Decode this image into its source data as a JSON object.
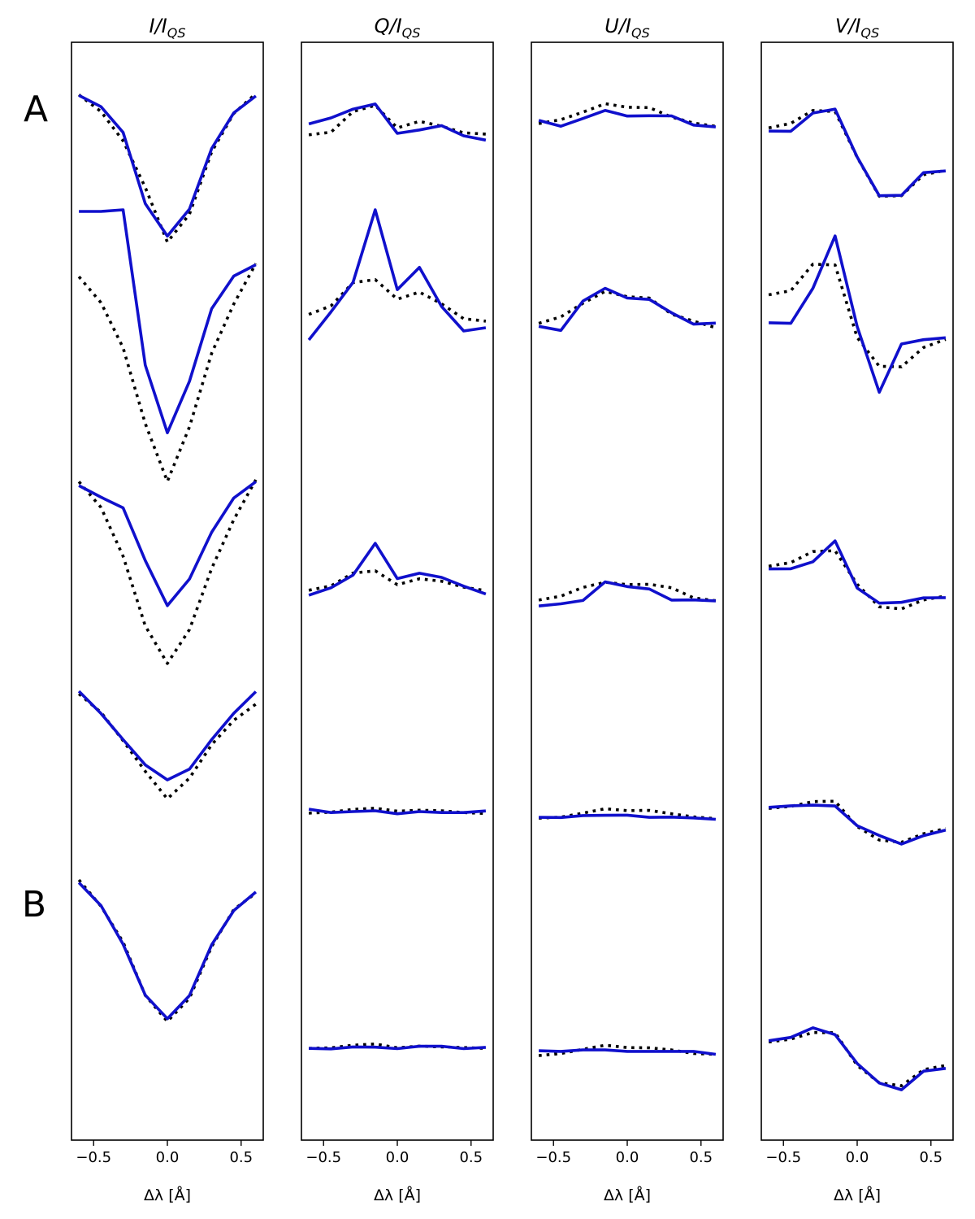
{
  "figure": {
    "row_labels": [
      "A",
      "B"
    ],
    "xlabel": "Δλ [Å]",
    "xticks": [
      -0.5,
      0.0,
      0.5
    ],
    "colors": {
      "fit": "#1010cc",
      "observed": "#000000"
    }
  },
  "chart_data": [
    {
      "type": "line",
      "title": "I/I_QS",
      "title_main": "I/I",
      "title_sub": "QS",
      "xlabel": "Δλ [Å]",
      "xlim": [
        -0.65,
        0.65
      ],
      "x": [
        -0.6,
        -0.45,
        -0.3,
        -0.15,
        0.0,
        0.15,
        0.3,
        0.45,
        0.6
      ],
      "profiles": [
        {
          "fit": [
            0.99,
            0.93,
            0.793,
            0.414,
            0.241,
            0.385,
            0.707,
            0.897,
            0.987
          ],
          "observed": [
            0.993,
            0.904,
            0.748,
            0.5,
            0.209,
            0.358,
            0.689,
            0.894,
            1.0
          ]
        },
        {
          "fit": [
            0.994,
            0.994,
            1.0,
            0.428,
            0.179,
            0.369,
            0.636,
            0.756,
            0.798
          ],
          "observed": [
            0.754,
            0.658,
            0.492,
            0.213,
            0.0,
            0.201,
            0.472,
            0.653,
            0.802
          ]
        },
        {
          "fit": [
            0.972,
            0.915,
            0.863,
            0.606,
            0.386,
            0.516,
            0.744,
            0.911,
            0.991
          ],
          "observed": [
            0.991,
            0.865,
            0.627,
            0.287,
            0.104,
            0.269,
            0.567,
            0.805,
            1.0
          ]
        },
        {
          "fit": [
            1.0,
            0.888,
            0.757,
            0.63,
            0.555,
            0.609,
            0.757,
            0.889,
            0.998
          ],
          "observed": [
            0.987,
            0.894,
            0.752,
            0.598,
            0.46,
            0.564,
            0.732,
            0.854,
            0.935
          ]
        },
        {
          "fit": [
            0.987,
            0.879,
            0.697,
            0.457,
            0.346,
            0.455,
            0.694,
            0.855,
            0.943
          ],
          "observed": [
            1.0,
            0.876,
            0.707,
            0.456,
            0.333,
            0.443,
            0.686,
            0.86,
            0.938
          ]
        }
      ]
    },
    {
      "type": "line",
      "title": "Q/I_QS",
      "title_main": "Q/I",
      "title_sub": "QS",
      "xlabel": "Δλ [Å]",
      "xlim": [
        -0.65,
        0.65
      ],
      "x": [
        -0.6,
        -0.45,
        -0.3,
        -0.15,
        0.0,
        0.15,
        0.3,
        0.45,
        0.6
      ],
      "profiles": [
        {
          "fit": [
            0.838,
            0.87,
            0.917,
            0.944,
            0.788,
            0.806,
            0.829,
            0.775,
            0.752
          ],
          "observed": [
            0.78,
            0.794,
            0.904,
            0.937,
            0.817,
            0.852,
            0.826,
            0.791,
            0.784
          ]
        },
        {
          "fit": [
            0.521,
            0.624,
            0.733,
            1.0,
            0.706,
            0.788,
            0.644,
            0.554,
            0.566
          ],
          "observed": [
            0.615,
            0.646,
            0.732,
            0.743,
            0.671,
            0.697,
            0.654,
            0.599,
            0.59
          ]
        },
        {
          "fit": [
            0.437,
            0.473,
            0.535,
            0.69,
            0.518,
            0.544,
            0.524,
            0.481,
            0.443
          ],
          "observed": [
            0.461,
            0.482,
            0.545,
            0.556,
            0.488,
            0.517,
            0.505,
            0.476,
            0.459
          ]
        },
        {
          "fit": [
            0.408,
            0.391,
            0.396,
            0.4,
            0.385,
            0.396,
            0.391,
            0.391,
            0.399
          ],
          "observed": [
            0.388,
            0.393,
            0.407,
            0.413,
            0.398,
            0.403,
            0.4,
            0.391,
            0.386
          ]
        },
        {
          "fit": [
            0.206,
            0.204,
            0.213,
            0.212,
            0.205,
            0.216,
            0.216,
            0.205,
            0.211
          ],
          "observed": [
            0.206,
            0.209,
            0.221,
            0.227,
            0.209,
            0.217,
            0.213,
            0.21,
            0.206
          ]
        }
      ]
    },
    {
      "type": "line",
      "title": "U/I_QS",
      "title_main": "U/I",
      "title_sub": "QS",
      "xlabel": "Δλ [Å]",
      "xlim": [
        -0.65,
        0.65
      ],
      "x": [
        -0.6,
        -0.45,
        -0.3,
        -0.15,
        0.0,
        0.15,
        0.3,
        0.45,
        0.6
      ],
      "profiles": [
        {
          "fit": [
            0.857,
            0.826,
            0.867,
            0.91,
            0.88,
            0.882,
            0.881,
            0.832,
            0.822
          ],
          "observed": [
            0.84,
            0.861,
            0.901,
            0.946,
            0.927,
            0.925,
            0.875,
            0.843,
            0.825
          ]
        },
        {
          "fit": [
            0.571,
            0.556,
            0.664,
            0.711,
            0.675,
            0.67,
            0.621,
            0.579,
            0.583
          ],
          "observed": [
            0.582,
            0.606,
            0.656,
            0.7,
            0.68,
            0.675,
            0.616,
            0.59,
            0.566
          ]
        },
        {
          "fit": [
            0.384,
            0.395,
            0.411,
            0.502,
            0.479,
            0.467,
            0.413,
            0.414,
            0.409
          ],
          "observed": [
            0.413,
            0.432,
            0.475,
            0.5,
            0.489,
            0.49,
            0.473,
            0.424,
            0.41
          ]
        },
        {
          "fit": [
            0.367,
            0.366,
            0.376,
            0.377,
            0.378,
            0.367,
            0.368,
            0.364,
            0.357
          ],
          "observed": [
            0.363,
            0.368,
            0.388,
            0.41,
            0.401,
            0.402,
            0.385,
            0.369,
            0.361
          ]
        },
        {
          "fit": [
            0.195,
            0.192,
            0.199,
            0.199,
            0.192,
            0.192,
            0.192,
            0.192,
            0.178
          ],
          "observed": [
            0.172,
            0.182,
            0.202,
            0.221,
            0.21,
            0.209,
            0.199,
            0.182,
            0.178
          ]
        }
      ]
    },
    {
      "type": "line",
      "title": "V/I_QS",
      "title_main": "V/I",
      "title_sub": "QS",
      "xlabel": "Δλ [Å]",
      "xlim": [
        -0.65,
        0.65
      ],
      "x": [
        -0.6,
        -0.45,
        -0.3,
        -0.15,
        0.0,
        0.15,
        0.3,
        0.45,
        0.6
      ],
      "profiles": [
        {
          "fit": [
            0.8,
            0.799,
            0.896,
            0.917,
            0.662,
            0.456,
            0.458,
            0.579,
            0.588
          ],
          "observed": [
            0.817,
            0.841,
            0.91,
            0.904,
            0.66,
            0.453,
            0.456,
            0.568,
            0.591
          ]
        },
        {
          "fit": [
            0.584,
            0.582,
            0.711,
            0.904,
            0.57,
            0.328,
            0.506,
            0.522,
            0.529
          ],
          "observed": [
            0.687,
            0.702,
            0.8,
            0.797,
            0.53,
            0.424,
            0.422,
            0.493,
            0.523
          ]
        },
        {
          "fit": [
            0.565,
            0.566,
            0.6,
            0.702,
            0.472,
            0.398,
            0.402,
            0.424,
            0.425
          ],
          "observed": [
            0.578,
            0.596,
            0.65,
            0.654,
            0.49,
            0.38,
            0.37,
            0.414,
            0.433
          ]
        },
        {
          "fit": [
            0.417,
            0.425,
            0.428,
            0.424,
            0.325,
            0.276,
            0.233,
            0.275,
            0.303
          ],
          "observed": [
            0.412,
            0.422,
            0.446,
            0.448,
            0.321,
            0.253,
            0.242,
            0.285,
            0.311
          ]
        },
        {
          "fit": [
            0.242,
            0.258,
            0.303,
            0.271,
            0.135,
            0.043,
            0.011,
            0.099,
            0.112
          ],
          "observed": [
            0.236,
            0.25,
            0.281,
            0.28,
            0.126,
            0.044,
            0.03,
            0.106,
            0.126
          ]
        }
      ]
    }
  ]
}
